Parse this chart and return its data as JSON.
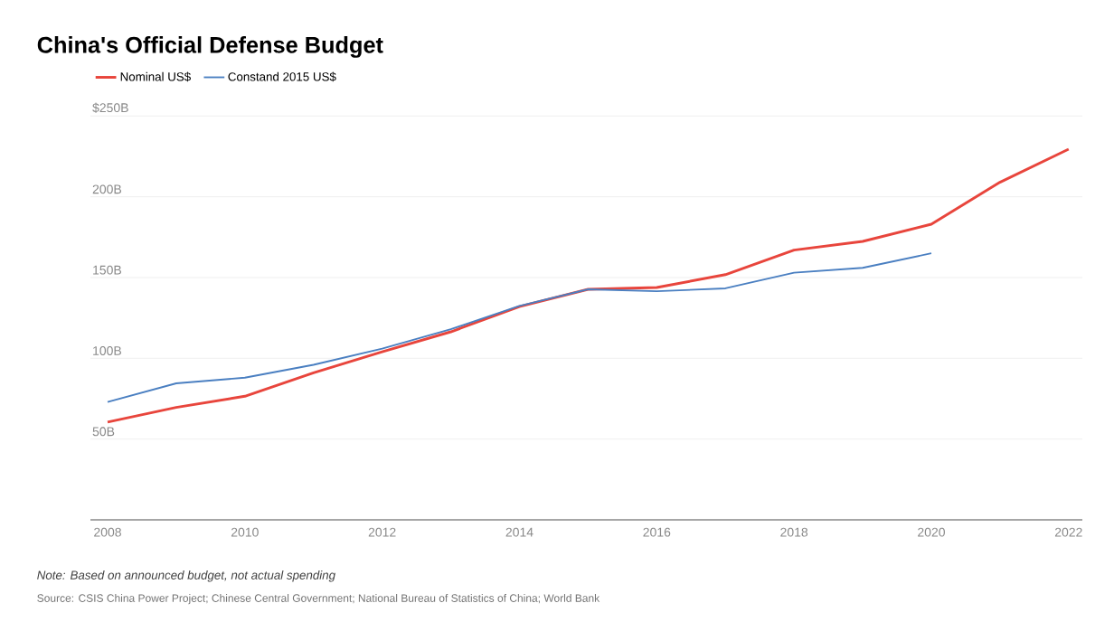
{
  "chart_data": {
    "type": "line",
    "title": "China's Official Defense Budget",
    "annotations": [
      "*Note: Based on announced budget, not actual spending*",
      "Source: CSIS China Power Project; Chinese Central Government; National Bureau of Statistics of China; World Bank"
    ],
    "x": [
      2008,
      2009,
      2010,
      2011,
      2012,
      2013,
      2014,
      2015,
      2016,
      2017,
      2018,
      2019,
      2020,
      2021,
      2022
    ],
    "series": [
      {
        "name": "Nominal US$",
        "color": "#e8453c",
        "values": [
          60.5,
          69.6,
          76.5,
          91,
          104,
          116.4,
          132,
          142.7,
          143.8,
          151.8,
          167,
          172.4,
          183,
          209,
          229.5
        ]
      },
      {
        "name": "Constand 2015 US$",
        "color": "#4a7fc1",
        "values": [
          73,
          84.5,
          88,
          96,
          106,
          118,
          132.4,
          142.7,
          141.5,
          143.3,
          153,
          156,
          165,
          null,
          null
        ]
      }
    ],
    "xlim": [
      2007.75,
      2022.2
    ],
    "ylim": [
      0,
      250
    ],
    "xticks": [
      2008,
      2010,
      2012,
      2014,
      2016,
      2018,
      2020,
      2022
    ],
    "yticks": [
      {
        "value": 50,
        "label": "50B"
      },
      {
        "value": 100,
        "label": "100B"
      },
      {
        "value": 150,
        "label": "150B"
      },
      {
        "value": 200,
        "label": "200B"
      },
      {
        "value": 250,
        "label": "$250B"
      }
    ],
    "grid": "y",
    "legend": "top left",
    "marker": "none",
    "line_style": "solid"
  }
}
